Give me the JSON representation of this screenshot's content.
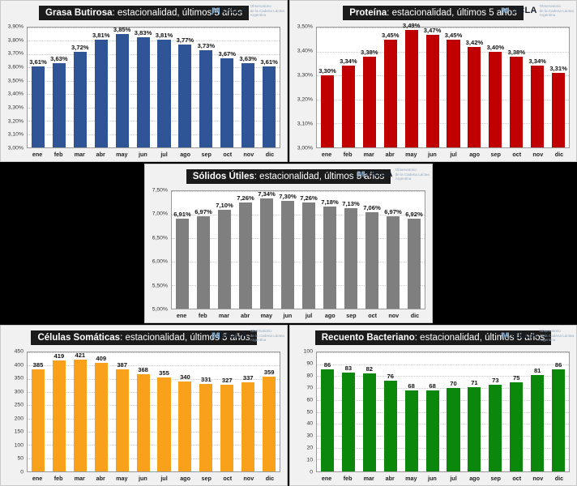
{
  "logo": {
    "brand": "OCLA",
    "icon": "waveform-brackets-icon",
    "icon_glyph": "|M|",
    "tagline_lines": [
      "Observatorio",
      "de la Cadena Láctea",
      "Argentina"
    ]
  },
  "months": [
    "ene",
    "feb",
    "mar",
    "abr",
    "may",
    "jun",
    "jul",
    "ago",
    "sep",
    "oct",
    "nov",
    "dic"
  ],
  "chart_data": [
    {
      "type": "bar",
      "title": "Grasa Butirosa: estacionalidad, últimos 5 años",
      "title_bold": "Grasa Butirosa",
      "title_rest": ": estacionalidad, últimos 5 años",
      "categories": [
        "ene",
        "feb",
        "mar",
        "abr",
        "may",
        "jun",
        "jul",
        "ago",
        "sep",
        "oct",
        "nov",
        "dic"
      ],
      "values": [
        3.61,
        3.63,
        3.72,
        3.81,
        3.85,
        3.83,
        3.81,
        3.77,
        3.73,
        3.67,
        3.63,
        3.61
      ],
      "value_labels": [
        "3,61%",
        "3,63%",
        "3,72%",
        "3,81%",
        "3,85%",
        "3,83%",
        "3,81%",
        "3,77%",
        "3,73%",
        "3,67%",
        "3,63%",
        "3,61%"
      ],
      "ylim": [
        3.0,
        3.9
      ],
      "ytick_labels": [
        "3,90%",
        "3,80%",
        "3,70%",
        "3,60%",
        "3,50%",
        "3,40%",
        "3,30%",
        "3,20%",
        "3,10%",
        "3,00%"
      ],
      "bar_color": "#2f5597",
      "grid": true,
      "legend": false,
      "xlabel": "",
      "ylabel": ""
    },
    {
      "type": "bar",
      "title": "Proteína: estacionalidad, últimos 5 años",
      "title_bold": "Proteína",
      "title_rest": ": estacionalidad, últimos 5 años",
      "categories": [
        "ene",
        "feb",
        "mar",
        "abr",
        "may",
        "jun",
        "jul",
        "ago",
        "sep",
        "oct",
        "nov",
        "dic"
      ],
      "values": [
        3.3,
        3.34,
        3.38,
        3.45,
        3.49,
        3.47,
        3.45,
        3.42,
        3.4,
        3.38,
        3.34,
        3.31
      ],
      "value_labels": [
        "3,30%",
        "3,34%",
        "3,38%",
        "3,45%",
        "3,49%",
        "3,47%",
        "3,45%",
        "3,42%",
        "3,40%",
        "3,38%",
        "3,34%",
        "3,31%"
      ],
      "ylim": [
        3.0,
        3.5
      ],
      "ytick_labels": [
        "3,50%",
        "3,40%",
        "3,30%",
        "3,20%",
        "3,10%",
        "3,00%"
      ],
      "bar_color": "#c00000",
      "grid": true,
      "legend": false,
      "xlabel": "",
      "ylabel": ""
    },
    {
      "type": "bar",
      "title": "Sólidos Útiles: estacionalidad, últimos 5 años",
      "title_bold": "Sólidos Útiles",
      "title_rest": ": estacionalidad, últimos 5 años",
      "categories": [
        "ene",
        "feb",
        "mar",
        "abr",
        "may",
        "jun",
        "jul",
        "ago",
        "sep",
        "oct",
        "nov",
        "dic"
      ],
      "values": [
        6.91,
        6.97,
        7.1,
        7.26,
        7.34,
        7.3,
        7.26,
        7.18,
        7.13,
        7.06,
        6.97,
        6.92
      ],
      "value_labels": [
        "6,91%",
        "6,97%",
        "7,10%",
        "7,26%",
        "7,34%",
        "7,30%",
        "7,26%",
        "7,18%",
        "7,13%",
        "7,06%",
        "6,97%",
        "6,92%"
      ],
      "ylim": [
        5.0,
        7.5
      ],
      "ytick_labels": [
        "7,50%",
        "7,00%",
        "6,50%",
        "6,00%",
        "5,50%",
        "5,00%"
      ],
      "bar_color": "#7f7f7f",
      "grid": true,
      "legend": false,
      "xlabel": "",
      "ylabel": ""
    },
    {
      "type": "bar",
      "title": "Células Somáticas: estacionalidad, últimos 5 años",
      "title_bold": "Células Somáticas",
      "title_rest": ": estacionalidad, últimos 5 años",
      "categories": [
        "ene",
        "feb",
        "mar",
        "abr",
        "may",
        "jun",
        "jul",
        "ago",
        "sep",
        "oct",
        "nov",
        "dic"
      ],
      "values": [
        385,
        419,
        421,
        409,
        387,
        368,
        355,
        340,
        331,
        327,
        337,
        359
      ],
      "value_labels": [
        "385",
        "419",
        "421",
        "409",
        "387",
        "368",
        "355",
        "340",
        "331",
        "327",
        "337",
        "359"
      ],
      "ylim": [
        0,
        450
      ],
      "ytick_labels": [
        "450",
        "400",
        "350",
        "300",
        "250",
        "200",
        "150",
        "100",
        "50",
        "0"
      ],
      "bar_color": "#f9a11b",
      "grid": true,
      "legend": false,
      "xlabel": "",
      "ylabel": ""
    },
    {
      "type": "bar",
      "title": "Recuento Bacteriano: estacionalidad, últimos 5 años",
      "title_bold": "Recuento Bacteriano",
      "title_rest": ": estacionalidad, últimos 5 años",
      "categories": [
        "ene",
        "feb",
        "mar",
        "abr",
        "may",
        "jun",
        "jul",
        "ago",
        "sep",
        "oct",
        "nov",
        "dic"
      ],
      "values": [
        86,
        83,
        82,
        76,
        68,
        68,
        70,
        71,
        73,
        75,
        81,
        86
      ],
      "value_labels": [
        "86",
        "83",
        "82",
        "76",
        "68",
        "68",
        "70",
        "71",
        "73",
        "75",
        "81",
        "86"
      ],
      "ylim": [
        0,
        100
      ],
      "ytick_labels": [
        "100",
        "90",
        "80",
        "70",
        "60",
        "50",
        "40",
        "30",
        "20",
        "10",
        "0"
      ],
      "bar_color": "#0b870b",
      "grid": true,
      "legend": false,
      "xlabel": "",
      "ylabel": ""
    }
  ]
}
